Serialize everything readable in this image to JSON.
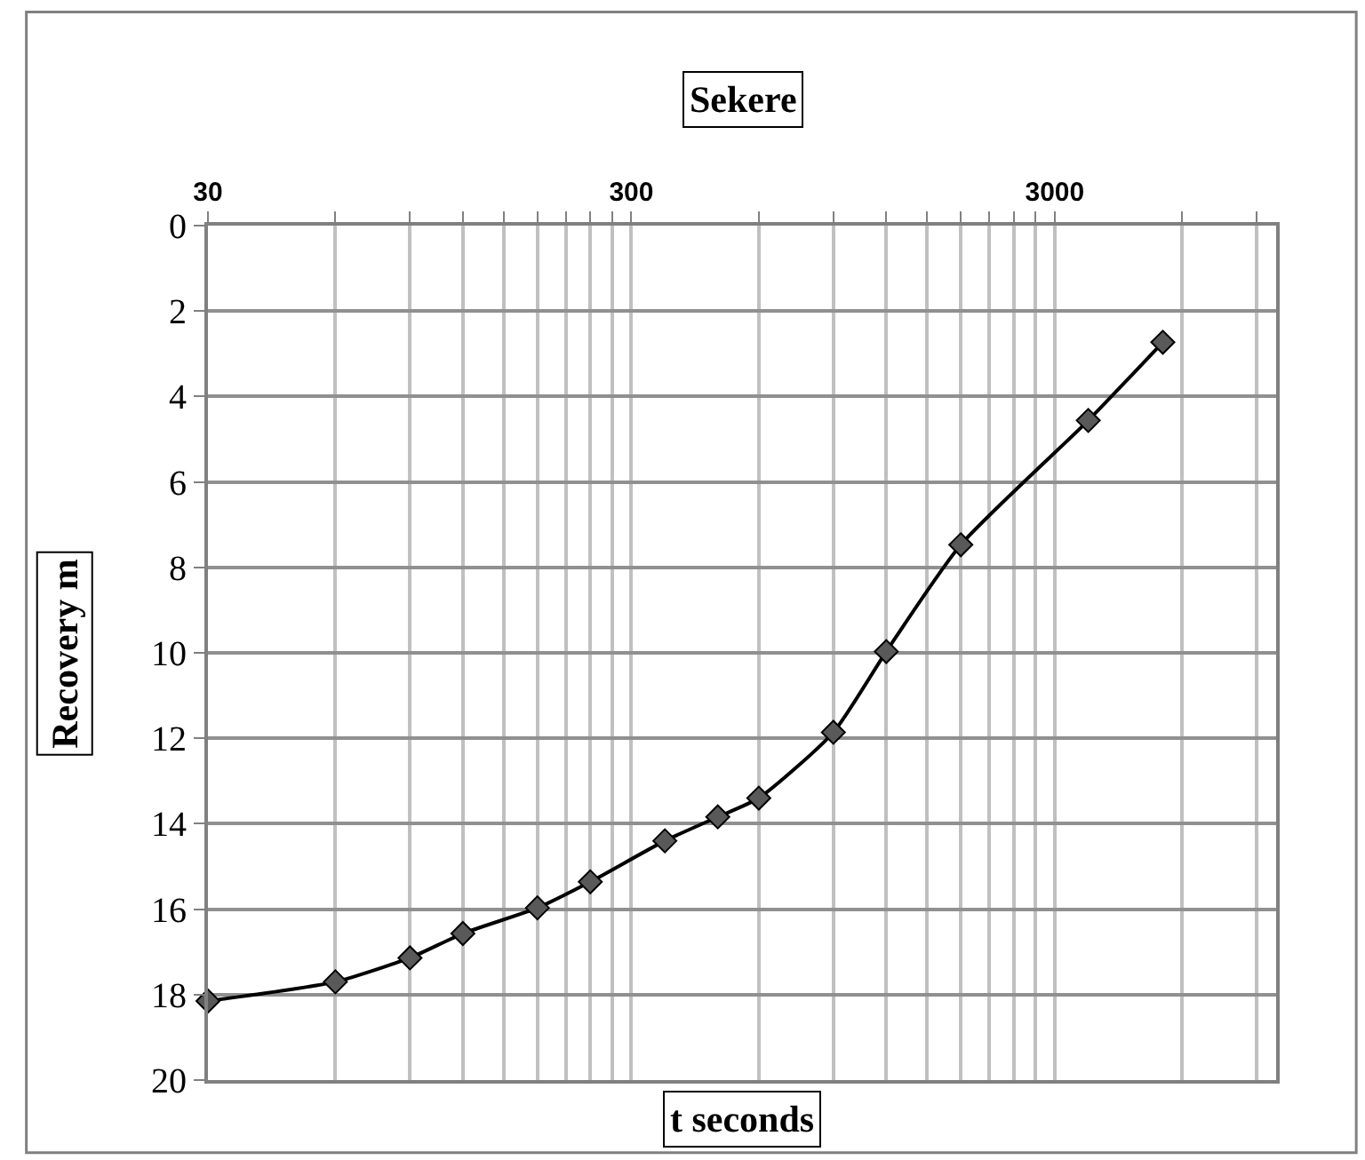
{
  "chart_data": {
    "type": "line",
    "title": "Sekere",
    "xlabel": "t seconds",
    "ylabel": "Recovery m",
    "log": "x",
    "xlim": [
      30,
      10000
    ],
    "ylim": [
      20,
      0
    ],
    "xticks": [
      30,
      {
        "value": 60,
        "label": null
      },
      {
        "value": 90,
        "label": null
      },
      {
        "value": 120,
        "label": null
      },
      {
        "value": 150,
        "label": null
      },
      {
        "value": 180,
        "label": null
      },
      {
        "value": 210,
        "label": null
      },
      {
        "value": 240,
        "label": null
      },
      {
        "value": 270,
        "label": null
      },
      300,
      {
        "value": 600,
        "label": null
      },
      {
        "value": 900,
        "label": null
      },
      {
        "value": 1200,
        "label": null
      },
      {
        "value": 1500,
        "label": null
      },
      {
        "value": 1800,
        "label": null
      },
      {
        "value": 2100,
        "label": null
      },
      {
        "value": 2400,
        "label": null
      },
      {
        "value": 2700,
        "label": null
      },
      3000,
      {
        "value": 6000,
        "label": null
      },
      {
        "value": 9000,
        "label": null
      }
    ],
    "yticks": [
      0,
      2,
      4,
      6,
      8,
      10,
      12,
      14,
      16,
      18,
      20
    ],
    "grid": true,
    "marker": "diamond",
    "line_style": "solid",
    "series": [
      {
        "color": "#000000",
        "x": [
          30,
          60,
          90,
          120,
          180,
          240,
          360,
          480,
          600,
          900,
          1200,
          1800,
          3600,
          5400
        ],
        "values": [
          18.15,
          17.7,
          17.14,
          16.57,
          15.97,
          15.36,
          14.4,
          13.84,
          13.4,
          11.86,
          9.97,
          7.47,
          4.56,
          2.73
        ]
      }
    ]
  }
}
